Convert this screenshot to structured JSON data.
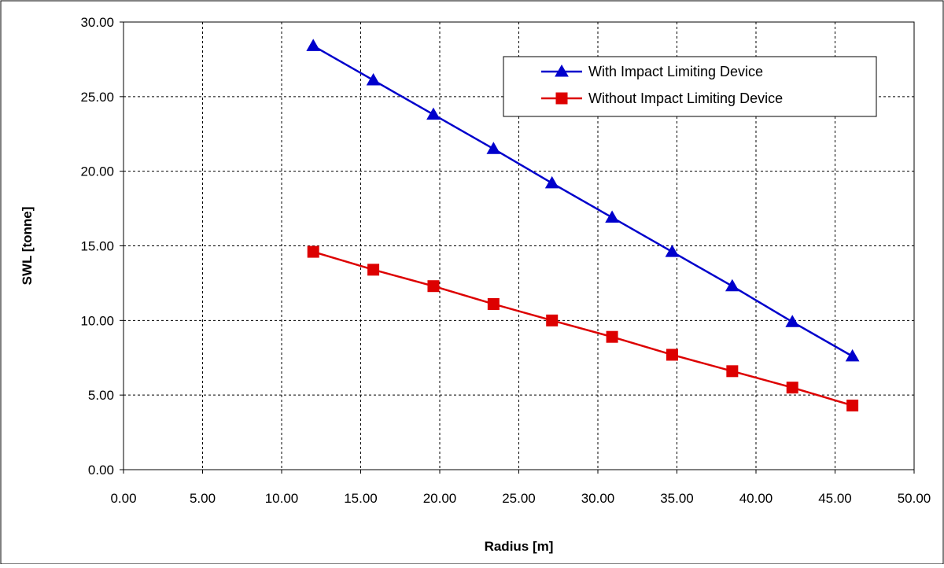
{
  "chart_data": {
    "type": "line",
    "title": "",
    "xlabel": "Radius [m]",
    "ylabel": "SWL  [tonne]",
    "xlim": [
      0,
      50
    ],
    "ylim": [
      0,
      30
    ],
    "x_ticks": [
      "0.00",
      "5.00",
      "10.00",
      "15.00",
      "20.00",
      "25.00",
      "30.00",
      "35.00",
      "40.00",
      "45.00",
      "50.00"
    ],
    "y_ticks": [
      "0.00",
      "5.00",
      "10.00",
      "15.00",
      "20.00",
      "25.00",
      "30.00"
    ],
    "grid": true,
    "legend_position": "top-right",
    "series": [
      {
        "name": "With Impact Limiting Device",
        "color": "#0000CC",
        "marker": "triangle",
        "x": [
          12.0,
          15.8,
          19.6,
          23.4,
          27.1,
          30.9,
          34.7,
          38.5,
          42.3,
          46.1
        ],
        "y": [
          28.4,
          26.1,
          23.8,
          21.5,
          19.2,
          16.9,
          14.6,
          12.3,
          9.9,
          7.6
        ]
      },
      {
        "name": "Without Impact Limiting Device",
        "color": "#DD0000",
        "marker": "square",
        "x": [
          12.0,
          15.8,
          19.6,
          23.4,
          27.1,
          30.9,
          34.7,
          38.5,
          42.3,
          46.1
        ],
        "y": [
          14.6,
          13.4,
          12.3,
          11.1,
          10.0,
          8.9,
          7.7,
          6.6,
          5.5,
          4.3
        ]
      }
    ]
  }
}
